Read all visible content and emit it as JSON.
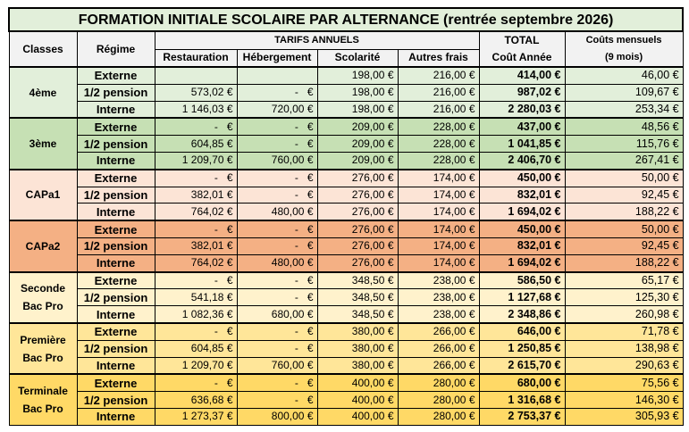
{
  "title": "FORMATION INITIALE SCOLAIRE PAR ALTERNANCE (rentrée septembre 2026)",
  "headers": {
    "classes": "Classes",
    "regime": "Régime",
    "tarifs": "TARIFS ANNUELS",
    "restauration": "Restauration",
    "hebergement": "Hébergement",
    "scolarite": "Scolarité",
    "autres": "Autres frais",
    "total1": "TOTAL",
    "total2": "Coût Année",
    "mensuel1": "Coûts mensuels",
    "mensuel2": "(9 mois)"
  },
  "groups": [
    {
      "label": "4ème",
      "color": "#e2efda",
      "rows": [
        [
          "Externe",
          "",
          "",
          "198,00 €",
          "216,00 €",
          "414,00 €",
          "46,00 €"
        ],
        [
          "1/2 pension",
          "573,02 €",
          "-   €",
          "198,00 €",
          "216,00 €",
          "987,02 €",
          "109,67 €"
        ],
        [
          "Interne",
          "1 146,03 €",
          "720,00 €",
          "198,00 €",
          "216,00 €",
          "2 280,03 €",
          "253,34 €"
        ]
      ]
    },
    {
      "label": "3ème",
      "color": "#c6e0b4",
      "rows": [
        [
          "Externe",
          "-   €",
          "-   €",
          "209,00 €",
          "228,00 €",
          "437,00 €",
          "48,56 €"
        ],
        [
          "1/2 pension",
          "604,85 €",
          "-   €",
          "209,00 €",
          "228,00 €",
          "1 041,85 €",
          "115,76 €"
        ],
        [
          "Interne",
          "1 209,70 €",
          "760,00 €",
          "209,00 €",
          "228,00 €",
          "2 406,70 €",
          "267,41 €"
        ]
      ]
    },
    {
      "label": "CAPa1",
      "color": "#fce4d6",
      "rows": [
        [
          "Externe",
          "-   €",
          "-   €",
          "276,00 €",
          "174,00 €",
          "450,00 €",
          "50,00 €"
        ],
        [
          "1/2 pension",
          "382,01 €",
          "-   €",
          "276,00 €",
          "174,00 €",
          "832,01 €",
          "92,45 €"
        ],
        [
          "Interne",
          "764,02 €",
          "480,00 €",
          "276,00 €",
          "174,00 €",
          "1 694,02 €",
          "188,22 €"
        ]
      ]
    },
    {
      "label": "CAPa2",
      "color": "#f4b084",
      "rows": [
        [
          "Externe",
          "-   €",
          "-   €",
          "276,00 €",
          "174,00 €",
          "450,00 €",
          "50,00 €"
        ],
        [
          "1/2 pension",
          "382,01 €",
          "-   €",
          "276,00 €",
          "174,00 €",
          "832,01 €",
          "92,45 €"
        ],
        [
          "Interne",
          "764,02 €",
          "480,00 €",
          "276,00 €",
          "174,00 €",
          "1 694,02 €",
          "188,22 €"
        ]
      ]
    },
    {
      "label": "Seconde Bac Pro",
      "color": "#fff2cc",
      "rows": [
        [
          "Externe",
          "-   €",
          "-   €",
          "348,50 €",
          "238,00 €",
          "586,50 €",
          "65,17 €"
        ],
        [
          "1/2 pension",
          "541,18 €",
          "-   €",
          "348,50 €",
          "238,00 €",
          "1 127,68 €",
          "125,30 €"
        ],
        [
          "Interne",
          "1 082,36 €",
          "680,00 €",
          "348,50 €",
          "238,00 €",
          "2 348,86 €",
          "260,98 €"
        ]
      ]
    },
    {
      "label": "Première Bac Pro",
      "color": "#ffe699",
      "rows": [
        [
          "Externe",
          "-   €",
          "-   €",
          "380,00 €",
          "266,00 €",
          "646,00 €",
          "71,78 €"
        ],
        [
          "1/2 pension",
          "604,85 €",
          "-   €",
          "380,00 €",
          "266,00 €",
          "1 250,85 €",
          "138,98 €"
        ],
        [
          "Interne",
          "1 209,70 €",
          "760,00 €",
          "380,00 €",
          "266,00 €",
          "2 615,70 €",
          "290,63 €"
        ]
      ]
    },
    {
      "label": "Terminale Bac Pro",
      "color": "#ffd966",
      "rows": [
        [
          "Externe",
          "-   €",
          "-   €",
          "400,00 €",
          "280,00 €",
          "680,00 €",
          "75,56 €"
        ],
        [
          "1/2 pension",
          "636,68 €",
          "-   €",
          "400,00 €",
          "280,00 €",
          "1 316,68 €",
          "146,30 €"
        ],
        [
          "Interne",
          "1 273,37 €",
          "800,00 €",
          "400,00 €",
          "280,00 €",
          "2 753,37 €",
          "305,93 €"
        ]
      ]
    }
  ]
}
